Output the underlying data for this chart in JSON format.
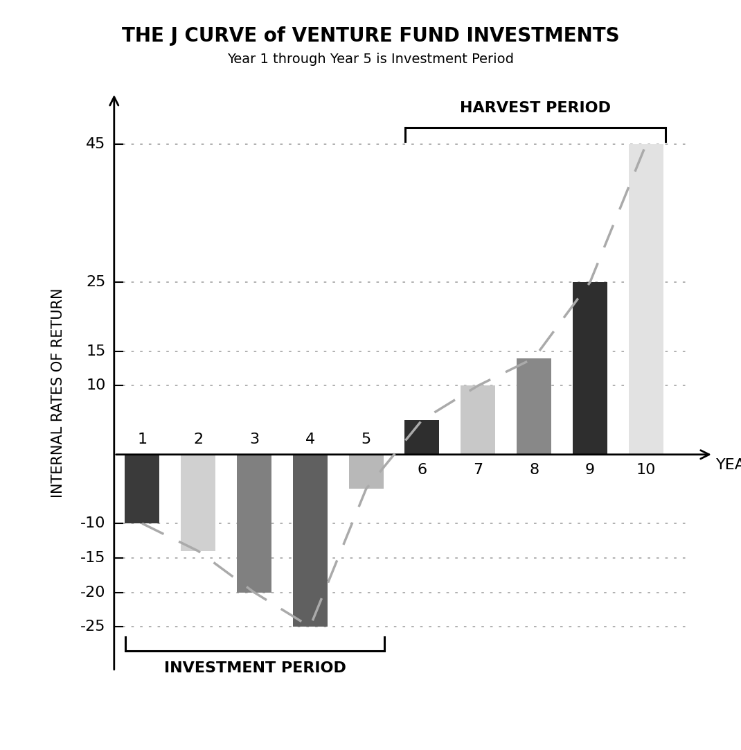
{
  "title": "THE J CURVE of VENTURE FUND INVESTMENTS",
  "subtitle": "Year 1 through Year 5 is Investment Period",
  "ylabel": "INTERNAL RATES OF RETURN",
  "xlabel_end": "YEARS",
  "years": [
    1,
    2,
    3,
    4,
    5,
    6,
    7,
    8,
    9,
    10
  ],
  "values": [
    -10,
    -14,
    -20,
    -25,
    -5,
    5,
    10,
    14,
    25,
    45
  ],
  "bar_colors": [
    "#3a3a3a",
    "#d0d0d0",
    "#808080",
    "#606060",
    "#b8b8b8",
    "#2e2e2e",
    "#c8c8c8",
    "#888888",
    "#2e2e2e",
    "#e2e2e2"
  ],
  "ylim": [
    -32,
    54
  ],
  "yticks": [
    -25,
    -20,
    -15,
    -10,
    0,
    10,
    15,
    25,
    45
  ],
  "grid_color": "#aaaaaa",
  "dashed_line_color": "#aaaaaa",
  "harvest_label": "HARVEST PERIOD",
  "invest_label": "INVESTMENT PERIOD",
  "background": "#ffffff"
}
